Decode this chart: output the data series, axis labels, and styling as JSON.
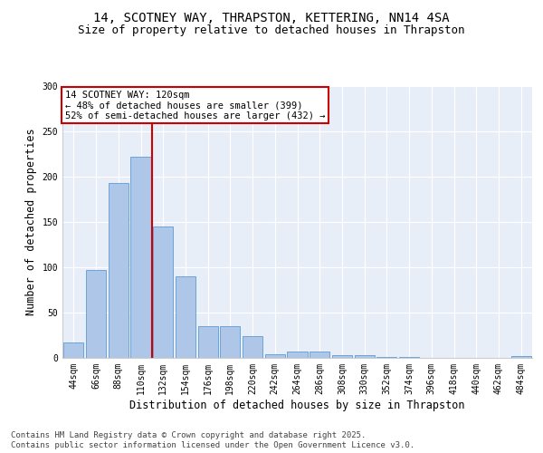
{
  "title_line1": "14, SCOTNEY WAY, THRAPSTON, KETTERING, NN14 4SA",
  "title_line2": "Size of property relative to detached houses in Thrapston",
  "xlabel": "Distribution of detached houses by size in Thrapston",
  "ylabel": "Number of detached properties",
  "categories": [
    "44sqm",
    "66sqm",
    "88sqm",
    "110sqm",
    "132sqm",
    "154sqm",
    "176sqm",
    "198sqm",
    "220sqm",
    "242sqm",
    "264sqm",
    "286sqm",
    "308sqm",
    "330sqm",
    "352sqm",
    "374sqm",
    "396sqm",
    "418sqm",
    "440sqm",
    "462sqm",
    "484sqm"
  ],
  "values": [
    17,
    97,
    193,
    222,
    145,
    90,
    35,
    35,
    24,
    4,
    7,
    7,
    3,
    3,
    1,
    1,
    0,
    0,
    0,
    0,
    2
  ],
  "bar_color": "#aec6e8",
  "bar_edge_color": "#5b9bd5",
  "vline_x": 3.5,
  "vline_color": "#cc0000",
  "annotation_line1": "14 SCOTNEY WAY: 120sqm",
  "annotation_line2": "← 48% of detached houses are smaller (399)",
  "annotation_line3": "52% of semi-detached houses are larger (432) →",
  "annotation_box_color": "#cc0000",
  "ylim": [
    0,
    300
  ],
  "yticks": [
    0,
    50,
    100,
    150,
    200,
    250,
    300
  ],
  "background_color": "#e8eef8",
  "footer_line1": "Contains HM Land Registry data © Crown copyright and database right 2025.",
  "footer_line2": "Contains public sector information licensed under the Open Government Licence v3.0.",
  "title_fontsize": 10,
  "subtitle_fontsize": 9,
  "axis_label_fontsize": 8.5,
  "tick_fontsize": 7,
  "footer_fontsize": 6.5,
  "annot_fontsize": 7.5
}
